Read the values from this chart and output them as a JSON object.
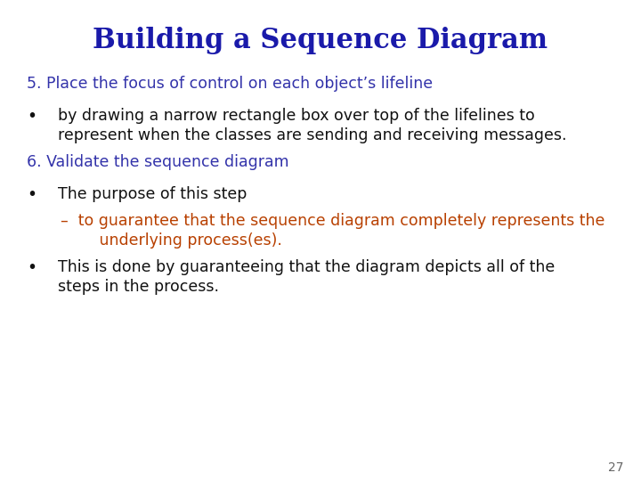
{
  "title": "Building a Sequence Diagram",
  "title_color": "#1A1AAA",
  "title_fontsize": 22,
  "title_bold": true,
  "background_color": "#FFFFFF",
  "page_number": "27",
  "content": [
    {
      "type": "heading",
      "text": "5. Place the focus of control on each object’s lifeline",
      "color": "#3333AA",
      "fontsize": 12.5
    },
    {
      "type": "bullet",
      "lines": [
        "by drawing a narrow rectangle box over top of the lifelines to",
        "represent when the classes are sending and receiving messages."
      ],
      "color": "#111111",
      "fontsize": 12.5
    },
    {
      "type": "heading",
      "text": "6. Validate the sequence diagram",
      "color": "#3333AA",
      "fontsize": 12.5
    },
    {
      "type": "bullet",
      "lines": [
        "The purpose of this step"
      ],
      "color": "#111111",
      "fontsize": 12.5
    },
    {
      "type": "sub_bullet",
      "lines": [
        "–  to guarantee that the sequence diagram completely represents the",
        "   underlying process(es)."
      ],
      "color": "#B84000",
      "fontsize": 12.5
    },
    {
      "type": "bullet",
      "lines": [
        "This is done by guaranteeing that the diagram depicts all of the",
        "steps in the process."
      ],
      "color": "#111111",
      "fontsize": 12.5
    }
  ]
}
